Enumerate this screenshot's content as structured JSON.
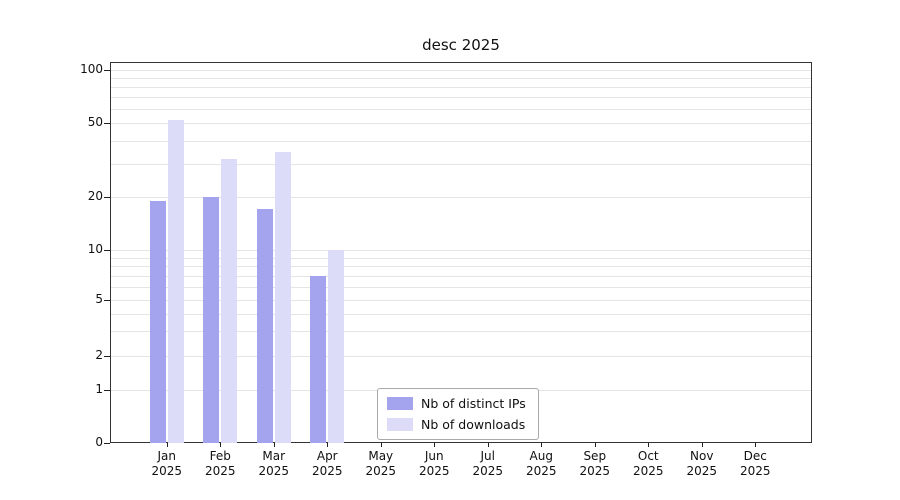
{
  "chart_data": {
    "type": "bar",
    "title": "desc 2025",
    "categories": [
      "Jan 2025",
      "Feb 2025",
      "Mar 2025",
      "Apr 2025",
      "May 2025",
      "Jun 2025",
      "Jul 2025",
      "Aug 2025",
      "Sep 2025",
      "Oct 2025",
      "Nov 2025",
      "Dec 2025"
    ],
    "series": [
      {
        "name": "Nb of distinct IPs",
        "color": "#a3a3ee",
        "values": [
          19,
          20,
          17,
          7,
          0,
          0,
          0,
          0,
          0,
          0,
          0,
          0
        ]
      },
      {
        "name": "Nb of downloads",
        "color": "#dcdcf8",
        "values": [
          52,
          32,
          35,
          10,
          0,
          0,
          0,
          0,
          0,
          0,
          0,
          0
        ]
      }
    ],
    "xlabel": "",
    "ylabel": "",
    "yscale": "log-like with 0 baseline",
    "ylim": [
      0,
      100
    ],
    "y_ticks": [
      0,
      1,
      2,
      5,
      10,
      20,
      50,
      100
    ],
    "grid_values": [
      1,
      2,
      3,
      4,
      5,
      6,
      7,
      8,
      9,
      10,
      20,
      30,
      40,
      50,
      60,
      70,
      80,
      90,
      100
    ],
    "grid": "horizontal",
    "legend_position": "inside bottom-center"
  }
}
